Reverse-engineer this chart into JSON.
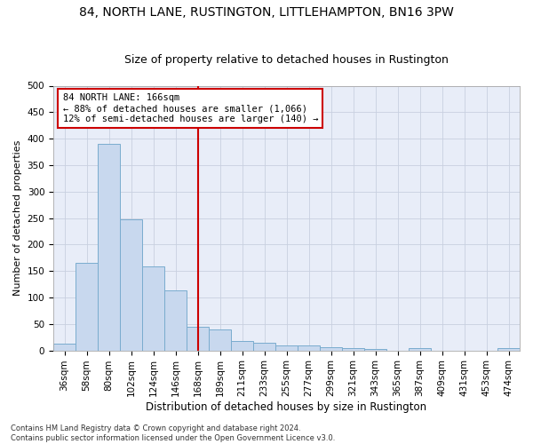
{
  "title1": "84, NORTH LANE, RUSTINGTON, LITTLEHAMPTON, BN16 3PW",
  "title2": "Size of property relative to detached houses in Rustington",
  "xlabel": "Distribution of detached houses by size in Rustington",
  "ylabel": "Number of detached properties",
  "categories": [
    "36sqm",
    "58sqm",
    "80sqm",
    "102sqm",
    "124sqm",
    "146sqm",
    "168sqm",
    "189sqm",
    "211sqm",
    "233sqm",
    "255sqm",
    "277sqm",
    "299sqm",
    "321sqm",
    "343sqm",
    "365sqm",
    "387sqm",
    "409sqm",
    "431sqm",
    "453sqm",
    "474sqm"
  ],
  "bar_values": [
    13,
    165,
    390,
    248,
    158,
    113,
    44,
    39,
    18,
    15,
    9,
    9,
    6,
    5,
    3,
    0,
    5,
    0,
    0,
    0,
    5
  ],
  "bar_color": "#c8d8ee",
  "bar_edge_color": "#7aacce",
  "vline_x": 6,
  "vline_color": "#cc0000",
  "annotation_text": "84 NORTH LANE: 166sqm\n← 88% of detached houses are smaller (1,066)\n12% of semi-detached houses are larger (140) →",
  "annotation_box_color": "#ffffff",
  "annotation_box_edge_color": "#cc0000",
  "ylim": [
    0,
    500
  ],
  "yticks": [
    0,
    50,
    100,
    150,
    200,
    250,
    300,
    350,
    400,
    450,
    500
  ],
  "footnote": "Contains HM Land Registry data © Crown copyright and database right 2024.\nContains public sector information licensed under the Open Government Licence v3.0.",
  "grid_color": "#c8d0e0",
  "background_color": "#e8edf8",
  "title1_fontsize": 10,
  "title2_fontsize": 9,
  "xlabel_fontsize": 8.5,
  "ylabel_fontsize": 8,
  "tick_fontsize": 7.5,
  "annot_fontsize": 7.5,
  "footnote_fontsize": 6
}
